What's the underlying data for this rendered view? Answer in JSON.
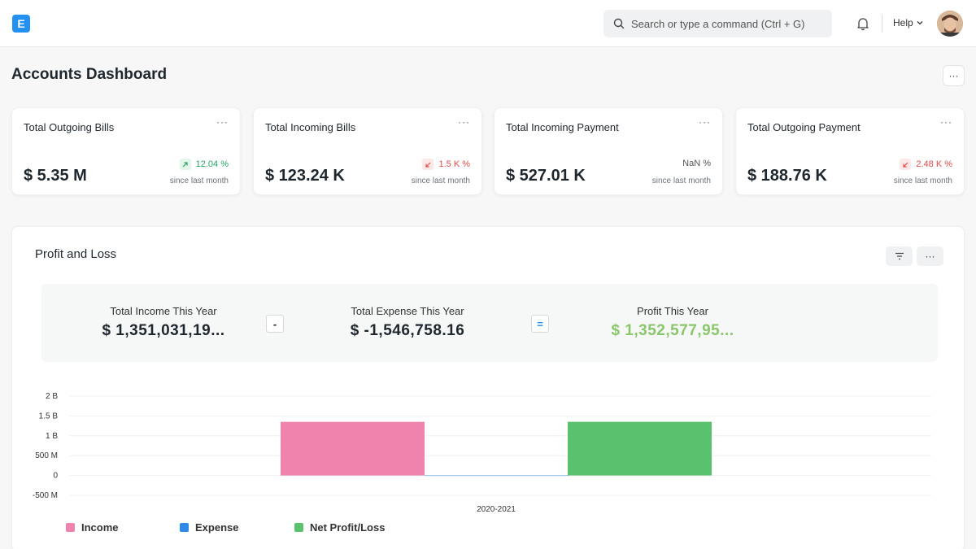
{
  "header": {
    "logo_letter": "E",
    "search_placeholder": "Search or type a command (Ctrl + G)",
    "help_label": "Help"
  },
  "page": {
    "title": "Accounts Dashboard",
    "menu_label": "···"
  },
  "cards": [
    {
      "title": "Total Outgoing Bills",
      "value": "$ 5.35 M",
      "pct": "12.04 %",
      "trend": "up",
      "since": "since last month"
    },
    {
      "title": "Total Incoming Bills",
      "value": "$ 123.24 K",
      "pct": "1.5 K %",
      "trend": "down",
      "since": "since last month"
    },
    {
      "title": "Total Incoming Payment",
      "value": "$ 527.01 K",
      "pct": "NaN %",
      "trend": "neutral",
      "since": "since last month"
    },
    {
      "title": "Total Outgoing Payment",
      "value": "$ 188.76 K",
      "pct": "2.48 K %",
      "trend": "down",
      "since": "since last month"
    }
  ],
  "card_menu": "···",
  "profit_loss": {
    "title": "Profit and Loss",
    "menu_label": "···",
    "summary": {
      "income_label": "Total Income This Year",
      "income_value": "$ 1,351,031,19...",
      "minus": "-",
      "expense_label": "Total Expense This Year",
      "expense_value": "$ -1,546,758.16",
      "equals": "=",
      "profit_label": "Profit This Year",
      "profit_value": "$ 1,352,577,95..."
    }
  },
  "colors": {
    "income": "#f083ad",
    "expense": "#2e8ae6",
    "net": "#5ac26e",
    "accent": "#2490ef"
  },
  "chart_data": {
    "type": "bar",
    "categories": [
      "2020-2021"
    ],
    "y_ticks": [
      "2 B",
      "1.5 B",
      "1 B",
      "500 M",
      "0",
      "-500 M"
    ],
    "ylim": [
      -500000000,
      2000000000
    ],
    "series": [
      {
        "name": "Income",
        "values": [
          1351031190
        ],
        "color": "#f083ad"
      },
      {
        "name": "Expense",
        "values": [
          -1546758.16
        ],
        "color": "#2e8ae6"
      },
      {
        "name": "Net Profit/Loss",
        "values": [
          1352577950
        ],
        "color": "#5ac26e"
      }
    ],
    "legend": "bottom-left",
    "grid": true
  }
}
